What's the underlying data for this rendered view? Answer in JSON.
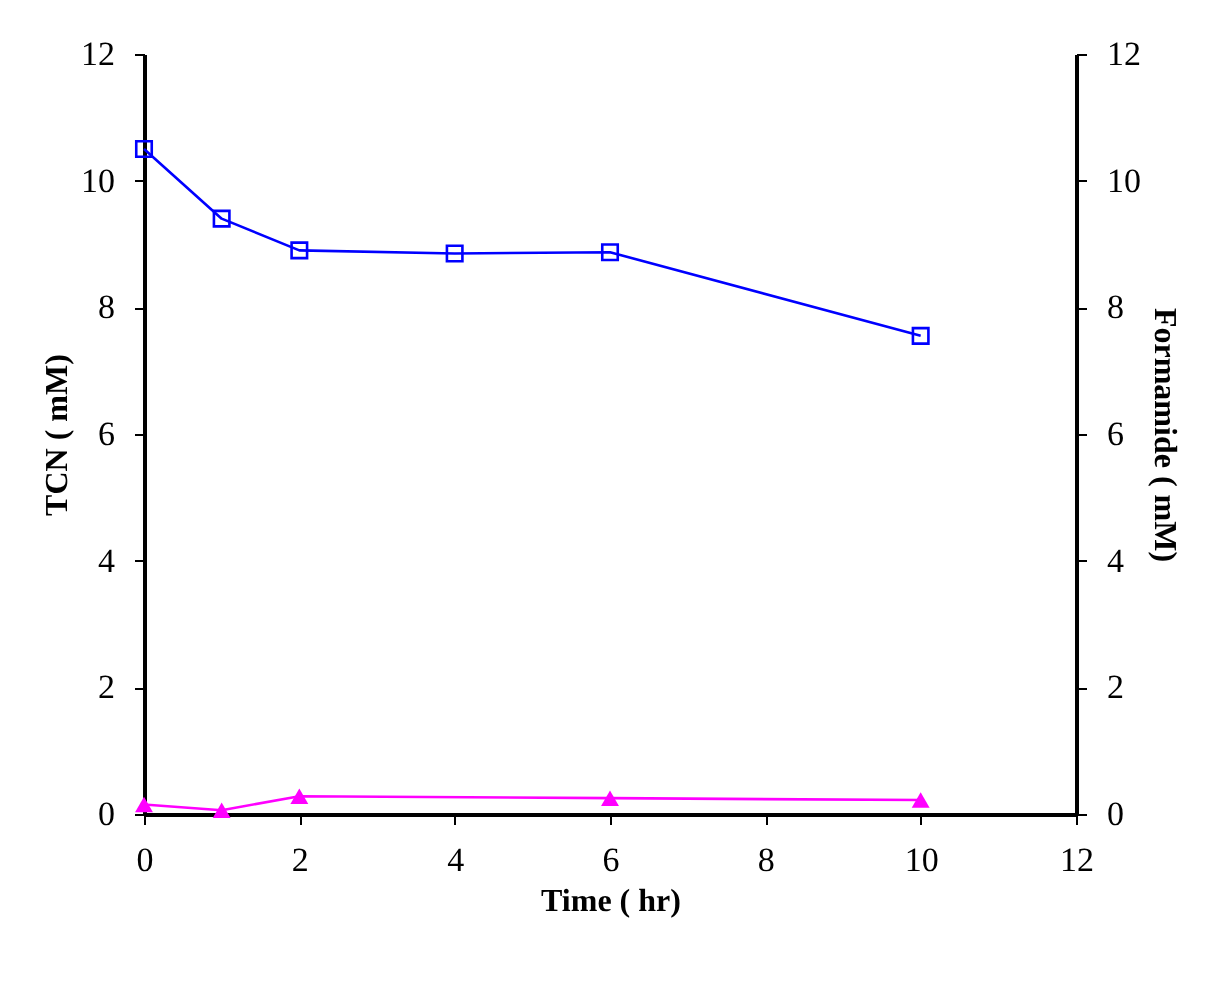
{
  "chart_data": {
    "type": "line",
    "xlabel": "Time ( hr)",
    "ylabel": "TCN ( mM)",
    "y2label": "Formamide ( mM)",
    "x": [
      0,
      1,
      2,
      4,
      6,
      10
    ],
    "xlim": [
      0,
      12
    ],
    "xticks": [
      0,
      2,
      4,
      6,
      8,
      10,
      12
    ],
    "ylim": [
      0,
      12
    ],
    "yticks": [
      0,
      2,
      4,
      6,
      8,
      10,
      12
    ],
    "y2lim": [
      0,
      12
    ],
    "y2ticks": [
      0,
      2,
      4,
      6,
      8,
      10,
      12
    ],
    "series": [
      {
        "color": "#0000ff",
        "marker": "square",
        "values": [
          10.5,
          9.4,
          8.9,
          8.85,
          8.87,
          7.55
        ]
      },
      {
        "color": "#ff00ff",
        "marker": "triangle",
        "axis": "y2",
        "values": [
          0.15,
          0.06,
          0.28,
          null,
          0.25,
          0.22
        ]
      }
    ]
  }
}
